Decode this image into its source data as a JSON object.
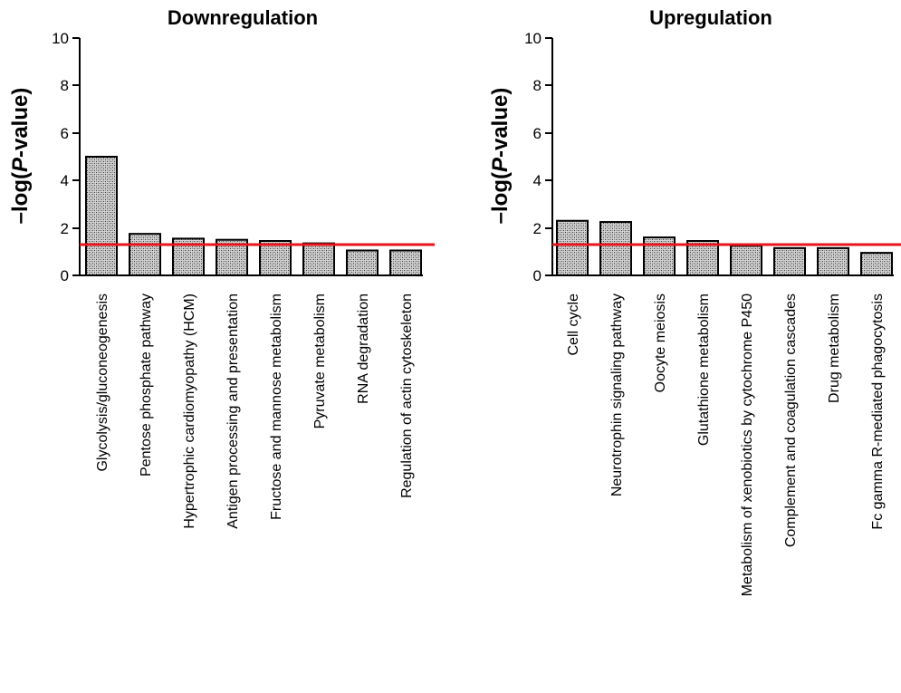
{
  "chart_data": [
    {
      "type": "bar",
      "title": "Downregulation",
      "ylabel_prefix": "–log(",
      "ylabel_italic": "P",
      "ylabel_suffix": "-value)",
      "ylim": [
        0,
        10
      ],
      "yticks": [
        "0",
        "2",
        "4",
        "6",
        "8",
        "10"
      ],
      "threshold": 1.3,
      "threshold_color": "#e8141e",
      "categories": [
        "Glycolysis/gluconeogenesis",
        "Pentose phosphate pathway",
        "Hypertrophic cardiomyopathy (HCM)",
        "Antigen processing and presentation",
        "Fructose and mannose metabolism",
        "Pyruvate metabolism",
        "RNA degradation",
        "Regulation of actin cytoskeleton"
      ],
      "values": [
        5.0,
        1.75,
        1.55,
        1.5,
        1.45,
        1.35,
        1.05,
        1.05
      ],
      "grid": false
    },
    {
      "type": "bar",
      "title": "Upregulation",
      "ylabel_prefix": "–log(",
      "ylabel_italic": "P",
      "ylabel_suffix": "-value)",
      "ylim": [
        0,
        10
      ],
      "yticks": [
        "0",
        "2",
        "4",
        "6",
        "8",
        "10"
      ],
      "threshold": 1.3,
      "threshold_color": "#e8141e",
      "categories": [
        "Cell cycle",
        "Neurotrophin signaling pathway",
        "Oocyte meiosis",
        "Glutathione metabolism",
        "Metabolism of xenobiotics by cytochrome P450",
        "Complement and coagulation cascades",
        "Drug metabolism",
        "Fc gamma R-mediated phagocytosis"
      ],
      "values": [
        2.3,
        2.25,
        1.6,
        1.45,
        1.25,
        1.15,
        1.15,
        0.95
      ],
      "grid": false
    }
  ]
}
